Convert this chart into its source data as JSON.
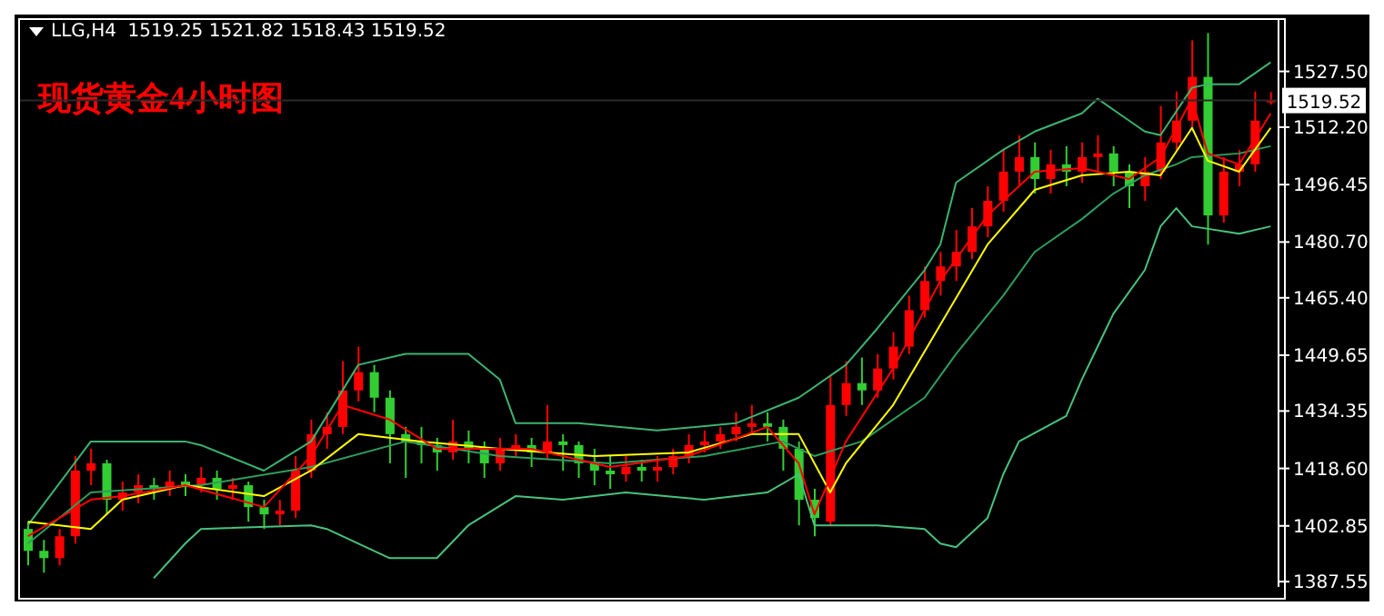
{
  "chart_data": {
    "type": "candlestick",
    "title": "现货黄金4小时图",
    "subtitle": "LLG,H4  1519.25 1521.82 1518.43 1519.52",
    "categories": [
      null,
      null,
      null,
      null,
      null,
      null,
      null,
      null,
      null,
      null,
      null,
      null,
      null,
      null,
      null,
      null,
      null,
      null,
      null,
      null,
      null,
      null,
      null,
      null,
      null,
      null,
      null,
      null,
      null,
      null,
      null,
      null,
      null,
      null,
      null,
      null,
      null,
      null,
      null,
      null,
      null,
      null,
      null,
      null,
      null,
      null,
      null,
      null,
      null,
      null,
      null,
      null,
      null,
      null,
      null,
      null,
      null,
      null,
      null,
      null,
      null,
      null,
      null,
      null,
      null,
      null,
      null,
      null,
      null,
      null,
      null,
      null,
      null,
      null,
      null,
      null,
      null,
      null,
      null,
      null
    ],
    "ohlc": [
      [
        1402,
        1404,
        1392,
        1396
      ],
      [
        1396,
        1399,
        1390,
        1394
      ],
      [
        1394,
        1402,
        1392,
        1400
      ],
      [
        1400,
        1422,
        1398,
        1418
      ],
      [
        1418,
        1424,
        1414,
        1420
      ],
      [
        1420,
        1421,
        1406,
        1410
      ],
      [
        1410,
        1415,
        1407,
        1412
      ],
      [
        1412,
        1417,
        1409,
        1414
      ],
      [
        1414,
        1416,
        1410,
        1413
      ],
      [
        1413,
        1418,
        1411,
        1415
      ],
      [
        1415,
        1417,
        1411,
        1414
      ],
      [
        1414,
        1419,
        1412,
        1416
      ],
      [
        1416,
        1418,
        1410,
        1413
      ],
      [
        1413,
        1416,
        1410,
        1414
      ],
      [
        1414,
        1415,
        1404,
        1408
      ],
      [
        1408,
        1410,
        1402,
        1406
      ],
      [
        1406,
        1410,
        1403,
        1407
      ],
      [
        1407,
        1422,
        1405,
        1418
      ],
      [
        1418,
        1432,
        1416,
        1428
      ],
      [
        1428,
        1434,
        1424,
        1430
      ],
      [
        1430,
        1448,
        1428,
        1440
      ],
      [
        1440,
        1452,
        1437,
        1445
      ],
      [
        1445,
        1447,
        1434,
        1438
      ],
      [
        1438,
        1440,
        1420,
        1428
      ],
      [
        1428,
        1430,
        1416,
        1426
      ],
      [
        1426,
        1430,
        1420,
        1425
      ],
      [
        1425,
        1427,
        1418,
        1423
      ],
      [
        1423,
        1432,
        1421,
        1426
      ],
      [
        1426,
        1429,
        1420,
        1424
      ],
      [
        1424,
        1426,
        1416,
        1420
      ],
      [
        1420,
        1427,
        1418,
        1424
      ],
      [
        1424,
        1428,
        1422,
        1425
      ],
      [
        1425,
        1427,
        1419,
        1423
      ],
      [
        1423,
        1436,
        1421,
        1426
      ],
      [
        1426,
        1428,
        1418,
        1425
      ],
      [
        1425,
        1426,
        1416,
        1420
      ],
      [
        1420,
        1424,
        1414,
        1418
      ],
      [
        1418,
        1422,
        1413,
        1417
      ],
      [
        1417,
        1422,
        1415,
        1419
      ],
      [
        1419,
        1421,
        1415,
        1418
      ],
      [
        1418,
        1422,
        1415,
        1419
      ],
      [
        1419,
        1424,
        1417,
        1422
      ],
      [
        1422,
        1428,
        1420,
        1425
      ],
      [
        1425,
        1429,
        1423,
        1426
      ],
      [
        1426,
        1430,
        1424,
        1428
      ],
      [
        1428,
        1434,
        1426,
        1430
      ],
      [
        1430,
        1436,
        1428,
        1431
      ],
      [
        1431,
        1434,
        1426,
        1430
      ],
      [
        1430,
        1432,
        1418,
        1424
      ],
      [
        1424,
        1426,
        1403,
        1410
      ],
      [
        1410,
        1413,
        1400,
        1405
      ],
      [
        1404,
        1444,
        1403,
        1436
      ],
      [
        1436,
        1448,
        1433,
        1442
      ],
      [
        1442,
        1449,
        1436,
        1440
      ],
      [
        1440,
        1450,
        1438,
        1446
      ],
      [
        1446,
        1456,
        1443,
        1452
      ],
      [
        1452,
        1466,
        1450,
        1462
      ],
      [
        1462,
        1474,
        1460,
        1470
      ],
      [
        1470,
        1478,
        1466,
        1474
      ],
      [
        1474,
        1484,
        1470,
        1478
      ],
      [
        1478,
        1490,
        1476,
        1485
      ],
      [
        1485,
        1496,
        1482,
        1492
      ],
      [
        1492,
        1506,
        1489,
        1500
      ],
      [
        1500,
        1510,
        1496,
        1504
      ],
      [
        1504,
        1508,
        1494,
        1498
      ],
      [
        1498,
        1506,
        1494,
        1502
      ],
      [
        1502,
        1507,
        1496,
        1500
      ],
      [
        1500,
        1508,
        1497,
        1504
      ],
      [
        1504,
        1510,
        1500,
        1505
      ],
      [
        1505,
        1507,
        1496,
        1500
      ],
      [
        1500,
        1502,
        1490,
        1496
      ],
      [
        1496,
        1504,
        1492,
        1500
      ],
      [
        1500,
        1518,
        1498,
        1508
      ],
      [
        1508,
        1522,
        1506,
        1514
      ],
      [
        1514,
        1536,
        1512,
        1526
      ],
      [
        1526,
        1538,
        1480,
        1488
      ],
      [
        1488,
        1504,
        1486,
        1500
      ],
      [
        1500,
        1506,
        1496,
        1502
      ],
      [
        1502,
        1522,
        1500,
        1514
      ],
      [
        1519.25,
        1521.82,
        1518.43,
        1519.52
      ]
    ],
    "colors": [
      "#32cd32",
      "#32cd32",
      "#ff0000",
      "#ff0000",
      "#ff0000",
      "#32cd32",
      "#ff0000",
      "#ff0000",
      "#32cd32",
      "#ff0000",
      "#32cd32",
      "#ff0000",
      "#32cd32",
      "#ff0000",
      "#32cd32",
      "#32cd32",
      "#ff0000",
      "#ff0000",
      "#ff0000",
      "#ff0000",
      "#ff0000",
      "#ff0000",
      "#32cd32",
      "#32cd32",
      "#32cd32",
      "#32cd32",
      "#32cd32",
      "#ff0000",
      "#32cd32",
      "#32cd32",
      "#ff0000",
      "#ff0000",
      "#32cd32",
      "#ff0000",
      "#32cd32",
      "#32cd32",
      "#32cd32",
      "#32cd32",
      "#ff0000",
      "#32cd32",
      "#ff0000",
      "#ff0000",
      "#ff0000",
      "#ff0000",
      "#ff0000",
      "#ff0000",
      "#ff0000",
      "#32cd32",
      "#32cd32",
      "#32cd32",
      "#32cd32",
      "#ff0000",
      "#ff0000",
      "#32cd32",
      "#ff0000",
      "#ff0000",
      "#ff0000",
      "#ff0000",
      "#ff0000",
      "#ff0000",
      "#ff0000",
      "#ff0000",
      "#ff0000",
      "#ff0000",
      "#32cd32",
      "#ff0000",
      "#32cd32",
      "#ff0000",
      "#ff0000",
      "#32cd32",
      "#32cd32",
      "#ff0000",
      "#ff0000",
      "#ff0000",
      "#ff0000",
      "#32cd32",
      "#ff0000",
      "#ff0000",
      "#ff0000",
      "#ff0000"
    ],
    "series": [
      {
        "type": "line",
        "color": "#3cb371",
        "values": [
          1403,
          null,
          null,
          null,
          1426,
          null,
          null,
          null,
          null,
          null,
          1426,
          1425,
          null,
          null,
          null,
          1418,
          null,
          null,
          1426,
          null,
          null,
          1447,
          null,
          null,
          1450,
          null,
          null,
          null,
          1450,
          null,
          1443,
          1431,
          null,
          null,
          null,
          1431,
          null,
          null,
          null,
          null,
          1429,
          null,
          null,
          null,
          null,
          1431,
          null,
          null,
          null,
          1438,
          null,
          null,
          1447,
          null,
          1457,
          null,
          null,
          1473,
          1480,
          1497,
          null,
          null,
          1506,
          null,
          1511,
          null,
          null,
          1516,
          1520,
          1517,
          null,
          1511,
          1510,
          null,
          1523,
          1524,
          null,
          1524,
          null,
          1530
        ]
      },
      {
        "type": "line",
        "color": "#2e9e5e",
        "values": [
          1398,
          null,
          null,
          null,
          1412,
          null,
          null,
          null,
          null,
          null,
          null,
          1414,
          null,
          null,
          null,
          null,
          null,
          null,
          1419,
          null,
          null,
          null,
          null,
          null,
          1426,
          null,
          null,
          null,
          null,
          null,
          1422,
          null,
          null,
          null,
          null,
          null,
          null,
          1420,
          null,
          null,
          null,
          null,
          null,
          1422,
          null,
          null,
          null,
          null,
          1426,
          null,
          1422,
          null,
          null,
          1426,
          null,
          null,
          null,
          1438,
          null,
          1450,
          null,
          null,
          1466,
          null,
          1478,
          null,
          null,
          1487,
          null,
          1494,
          null,
          1499,
          null,
          1502,
          1504,
          null,
          null,
          1505,
          null,
          1507
        ]
      },
      {
        "type": "line",
        "color": "#48c27e",
        "values": [
          null,
          null,
          null,
          null,
          null,
          null,
          null,
          null,
          1388.5,
          null,
          1398,
          1402,
          null,
          null,
          null,
          null,
          null,
          null,
          1403,
          1402,
          null,
          null,
          null,
          1394,
          null,
          null,
          1394,
          null,
          1403,
          null,
          null,
          1411,
          null,
          null,
          1410,
          null,
          null,
          null,
          1412,
          null,
          null,
          null,
          null,
          1410,
          null,
          null,
          null,
          1412,
          null,
          1417,
          1403,
          null,
          null,
          null,
          1403,
          null,
          null,
          1402,
          1398,
          1397,
          null,
          1405,
          1417,
          1426,
          null,
          null,
          1433,
          1443,
          1452,
          1461,
          null,
          1473,
          1485,
          1490,
          1485,
          null,
          null,
          1483,
          null,
          1485
        ]
      },
      {
        "type": "line",
        "color": "#ffff00",
        "values": [
          1404,
          null,
          null,
          null,
          1402,
          null,
          1410,
          null,
          null,
          null,
          1414,
          null,
          null,
          null,
          null,
          1411,
          null,
          null,
          1418,
          null,
          null,
          1428,
          null,
          null,
          null,
          1426,
          null,
          null,
          null,
          null,
          1424,
          null,
          null,
          null,
          null,
          null,
          1422,
          null,
          null,
          null,
          null,
          null,
          1423,
          null,
          null,
          null,
          1428,
          null,
          null,
          1428,
          null,
          1412,
          1420,
          null,
          null,
          1436,
          null,
          null,
          1458,
          null,
          null,
          1480,
          null,
          null,
          1495,
          null,
          null,
          1499,
          null,
          null,
          1500,
          null,
          1499,
          null,
          1512,
          1503,
          null,
          1500,
          null,
          1512
        ]
      },
      {
        "type": "line",
        "color": "#ff0000",
        "values": [
          1400,
          null,
          null,
          null,
          1410,
          null,
          1411,
          null,
          null,
          null,
          1414,
          null,
          null,
          null,
          null,
          1408,
          null,
          null,
          1422,
          null,
          1436,
          null,
          null,
          1432,
          null,
          null,
          1424,
          null,
          null,
          null,
          null,
          null,
          1424,
          null,
          null,
          null,
          null,
          1419,
          null,
          null,
          null,
          null,
          1422,
          null,
          null,
          null,
          null,
          1430,
          null,
          1420,
          1406,
          null,
          1426,
          null,
          null,
          1446,
          null,
          null,
          1470,
          null,
          null,
          1488,
          null,
          null,
          1500,
          null,
          null,
          1501,
          null,
          null,
          1498,
          null,
          1504,
          null,
          1520,
          1505,
          null,
          1502,
          null,
          1516
        ]
      }
    ],
    "ylim": [
      1386.1,
      1542.1
    ],
    "yticks": [
      1387.55,
      1402.85,
      {
        "value": 1418.6,
        "label": "1418.60"
      },
      1434.35,
      1449.65,
      {
        "value": 1465.4,
        "label": "1465.40"
      },
      {
        "value": 1480.7,
        "label": "1480.70"
      },
      1496.45,
      {
        "value": 1512.2,
        "label": "1512.20"
      },
      {
        "value": 1527.5,
        "label": "1527.50"
      }
    ],
    "ref_lines": [
      {
        "axis": "y",
        "value": 1519.52,
        "label": "1519.52",
        "color": "#2a2a2a"
      }
    ],
    "tick_labels": "y",
    "grid": false,
    "legend": false
  }
}
